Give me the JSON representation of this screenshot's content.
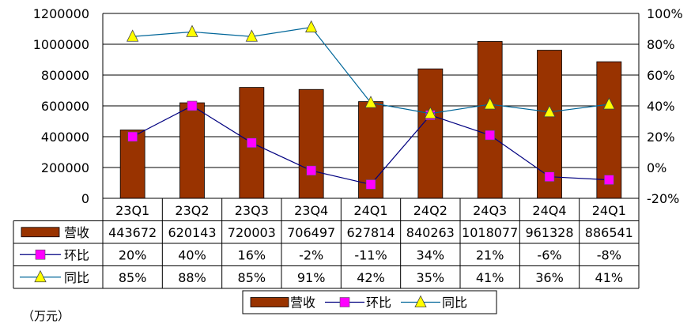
{
  "chart_data": {
    "type": "bar",
    "categories": [
      "23Q1",
      "23Q2",
      "23Q3",
      "23Q4",
      "24Q1",
      "24Q2",
      "24Q3",
      "24Q4",
      "24Q1"
    ],
    "series": [
      {
        "name": "营收",
        "type": "bar",
        "axis": "left",
        "color": "#993300",
        "values": [
          443672,
          620143,
          720003,
          706497,
          627814,
          840263,
          1018077,
          961328,
          886541
        ],
        "labels": [
          "443672",
          "620143",
          "720003",
          "706497",
          "627814",
          "840263",
          "1018077",
          "961328",
          "886541"
        ]
      },
      {
        "name": "环比",
        "type": "line",
        "axis": "right",
        "color": "#000080",
        "marker": "square",
        "marker_color": "#ff00ff",
        "values": [
          20,
          40,
          16,
          -2,
          -11,
          34,
          21,
          -6,
          -8
        ],
        "labels": [
          "20%",
          "40%",
          "16%",
          "-2%",
          "-11%",
          "34%",
          "21%",
          "-6%",
          "-8%"
        ]
      },
      {
        "name": "同比",
        "type": "line",
        "axis": "right",
        "color": "#006699",
        "marker": "triangle",
        "marker_color": "#ffff00",
        "values": [
          85,
          88,
          85,
          91,
          42,
          35,
          41,
          36,
          41
        ],
        "labels": [
          "85%",
          "88%",
          "85%",
          "91%",
          "42%",
          "35%",
          "41%",
          "36%",
          "41%"
        ]
      }
    ],
    "y_left": {
      "ylim": [
        0,
        1200000
      ],
      "ticks": [
        0,
        200000,
        400000,
        600000,
        800000,
        1000000,
        1200000
      ],
      "tick_labels": [
        "0",
        "200000",
        "400000",
        "600000",
        "800000",
        "1000000",
        "1200000"
      ]
    },
    "y_right": {
      "ylim": [
        -20,
        100
      ],
      "ticks": [
        -20,
        0,
        20,
        40,
        60,
        80,
        100
      ],
      "tick_labels": [
        "-20%",
        "0%",
        "20%",
        "40%",
        "60%",
        "80%",
        "100%"
      ]
    },
    "grid": true,
    "data_table": true,
    "legend_position": "bottom",
    "legend": [
      "营收",
      "环比",
      "同比"
    ],
    "unit_note": "（万元）"
  }
}
